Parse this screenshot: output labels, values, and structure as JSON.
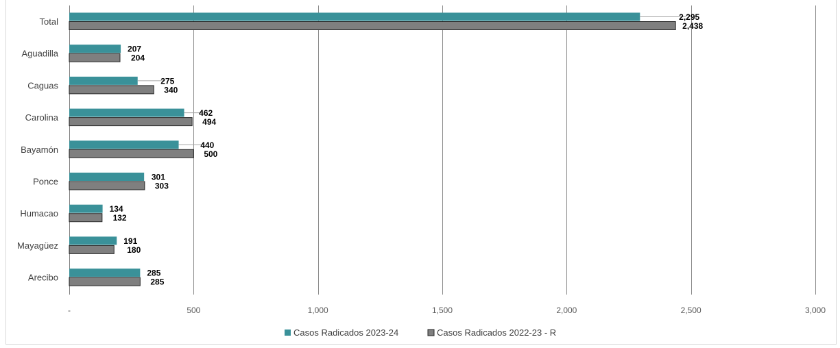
{
  "chart_data": {
    "type": "bar",
    "orientation": "horizontal",
    "title": "",
    "xlabel": "",
    "ylabel": "",
    "categories": [
      "Total",
      "Aguadilla",
      "Caguas",
      "Carolina",
      "Bayamón",
      "Ponce",
      "Humacao",
      "Mayagüez",
      "Arecibo"
    ],
    "series": [
      {
        "name": "Casos Radicados 2023-24",
        "color": "#3a9199",
        "values": [
          2295,
          207,
          275,
          462,
          440,
          301,
          134,
          191,
          285
        ],
        "labels": [
          "2,295",
          "207",
          "275",
          "462",
          "440",
          "301",
          "134",
          "191",
          "285"
        ]
      },
      {
        "name": "Casos Radicados 2022-23 - R",
        "color": "#7f7f7f",
        "values": [
          2438,
          204,
          340,
          494,
          500,
          303,
          132,
          180,
          285
        ],
        "labels": [
          "2,438",
          "204",
          "340",
          "494",
          "500",
          "303",
          "132",
          "180",
          "285"
        ]
      }
    ],
    "xlim": [
      0,
      3000
    ],
    "xticks": [
      {
        "value": 0,
        "label": "-"
      },
      {
        "value": 500,
        "label": "500"
      },
      {
        "value": 1000,
        "label": "1,000"
      },
      {
        "value": 1500,
        "label": "1,500"
      },
      {
        "value": 2000,
        "label": "2,000"
      },
      {
        "value": 2500,
        "label": "2,500"
      },
      {
        "value": 3000,
        "label": "3,000"
      }
    ],
    "grid": "vertical",
    "legend_position": "bottom"
  }
}
